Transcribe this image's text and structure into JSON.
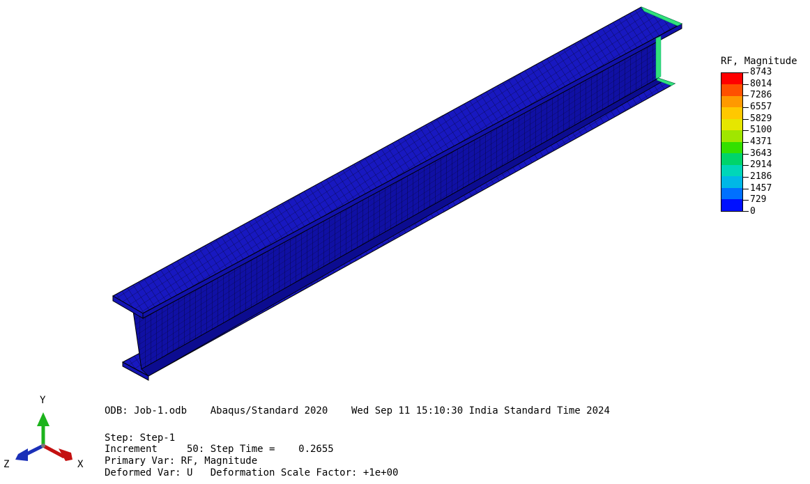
{
  "legend": {
    "title": "RF, Magnitude",
    "values": [
      "8743",
      "8014",
      "7286",
      "6557",
      "5829",
      "5100",
      "4371",
      "3643",
      "2914",
      "2186",
      "1457",
      "729",
      "0"
    ],
    "colors": [
      "#ff0000",
      "#ff5000",
      "#ff9900",
      "#ffc800",
      "#e6e600",
      "#a0e600",
      "#33e000",
      "#00d46a",
      "#00d6b8",
      "#00b8e6",
      "#0070ff",
      "#0010ff"
    ]
  },
  "info": {
    "odb_line": "ODB: Job-1.odb    Abaqus/Standard 2020    Wed Sep 11 15:10:30 India Standard Time 2024",
    "step_line": "Step: Step-1",
    "increment_line": "Increment     50: Step Time =    0.2655",
    "primary_var_line": "Primary Var: RF, Magnitude",
    "deformed_var_line": "Deformed Var: U   Deformation Scale Factor: +1e+00"
  },
  "triad": {
    "y_label": "Y",
    "x_label": "X",
    "z_label": "Z",
    "colors": {
      "y": "#1cb31c",
      "x": "#c41010",
      "z": "#1a2fb8"
    }
  },
  "model": {
    "mesh_color": "#1414b4",
    "flange_color": "#1818c0",
    "web_color": "#1010a4",
    "edge_color": "#000000",
    "end_highlight": "#33e07a"
  }
}
